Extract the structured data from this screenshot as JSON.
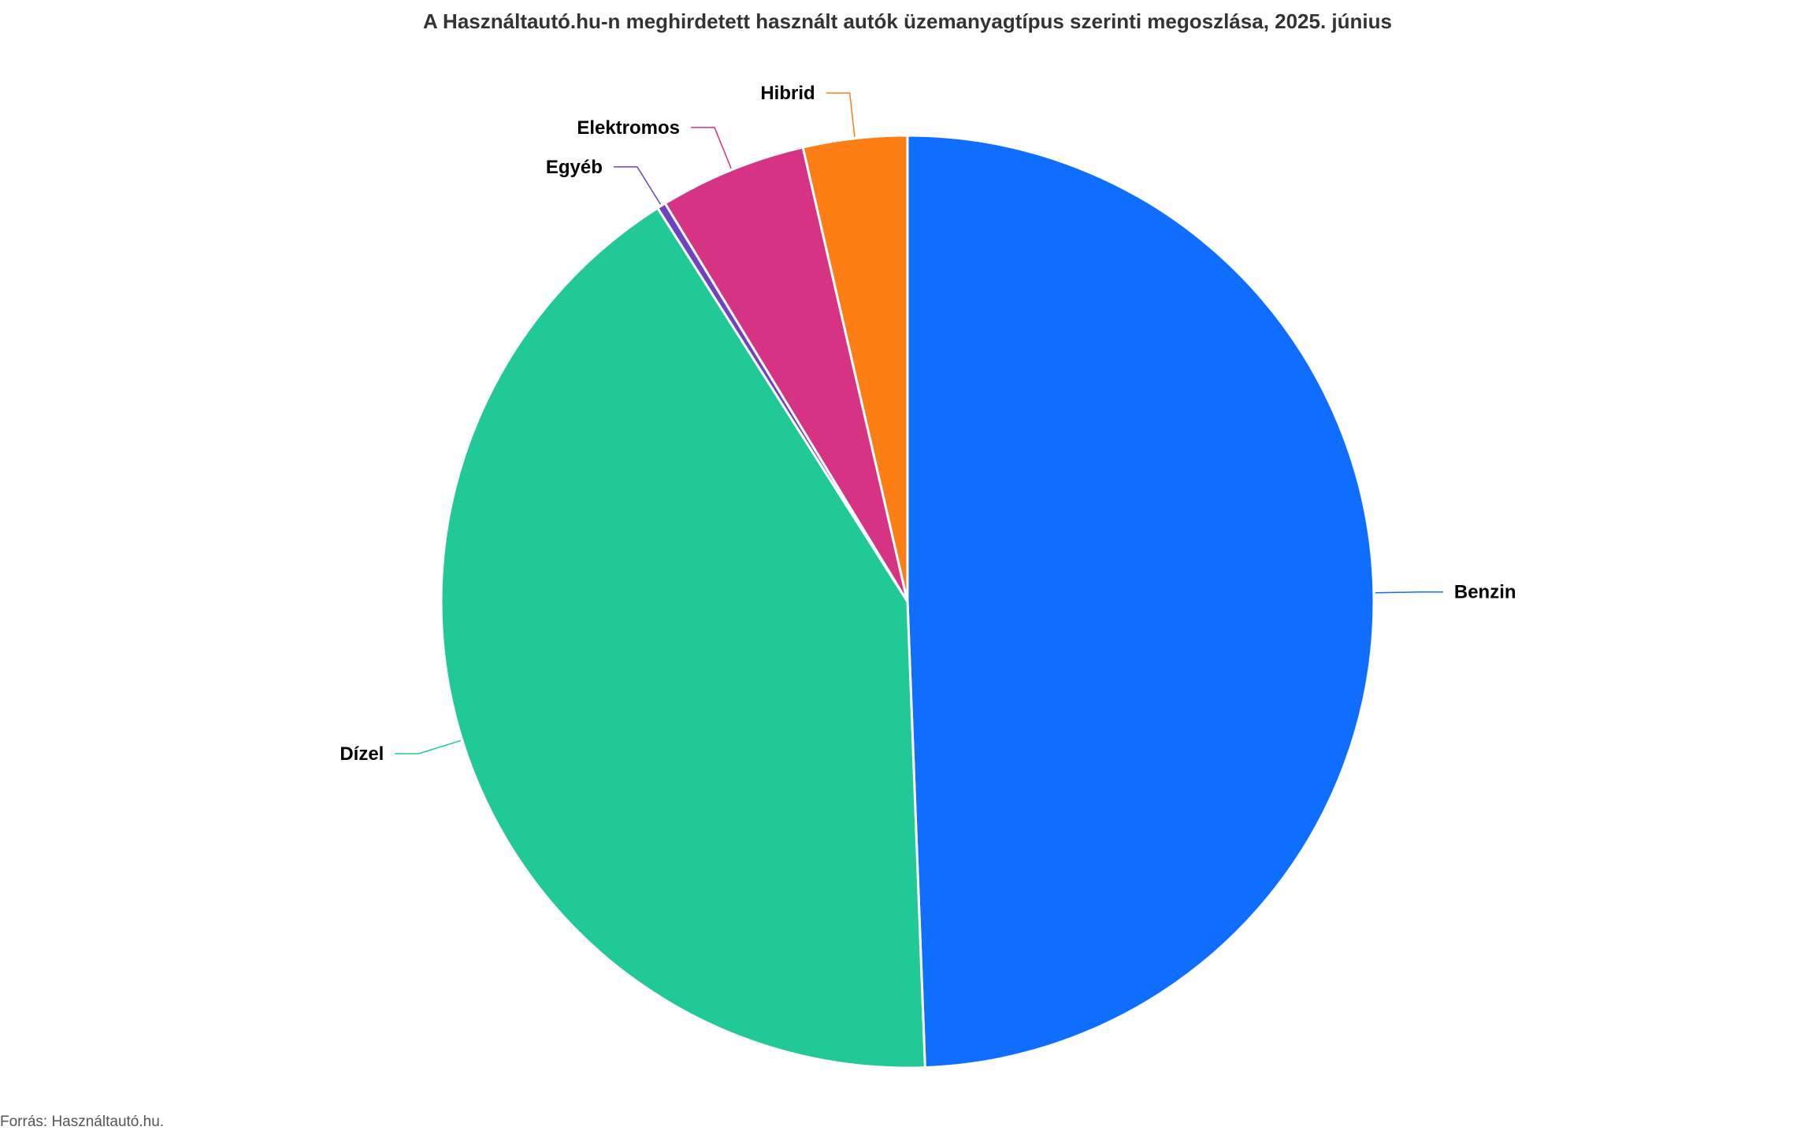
{
  "chart_data": {
    "type": "pie",
    "title": "A Használtautó.hu-n meghirdetett használt autók üzemanyagtípus szerinti megoszlása, 2025. június",
    "slices": [
      {
        "label": "Benzin",
        "value": 49.4,
        "color": "#0f6efd"
      },
      {
        "label": "Dízel",
        "value": 41.6,
        "color": "#20c997"
      },
      {
        "label": "Egyéb",
        "value": 0.3,
        "color": "#6f42c1"
      },
      {
        "label": "Elektromos",
        "value": 5.1,
        "color": "#d63384"
      },
      {
        "label": "Hibrid",
        "value": 3.6,
        "color": "#fd7e14"
      }
    ],
    "start_angle": "12 o'clock",
    "direction": "clockwise",
    "legend": "none",
    "data_labels": "outside with leader lines"
  },
  "footer": {
    "source": "Forrás: Használtautó.hu."
  }
}
